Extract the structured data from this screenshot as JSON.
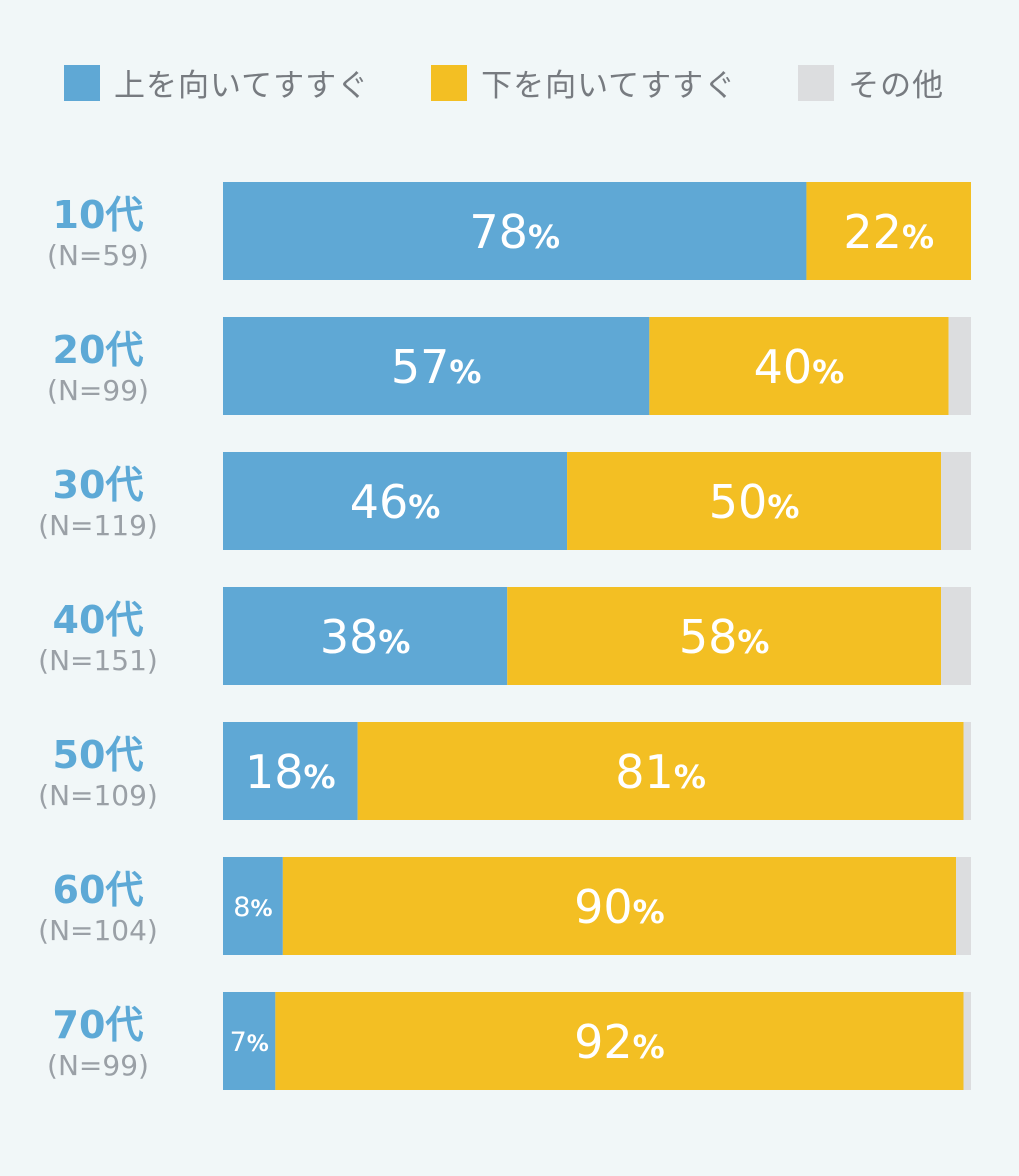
{
  "legend": [
    {
      "label": "上を向いてすすぐ",
      "color": "#5fa8d5"
    },
    {
      "label": "下を向いてすすぐ",
      "color": "#f3bf23"
    },
    {
      "label": "その他",
      "color": "#dcdddf"
    }
  ],
  "chart_data": {
    "type": "bar",
    "orientation": "horizontal",
    "stacked": true,
    "unit": "%",
    "categories": [
      "10代",
      "20代",
      "30代",
      "40代",
      "50代",
      "60代",
      "70代"
    ],
    "category_notes": [
      "(N=59)",
      "(N=99)",
      "(N=119)",
      "(N=151)",
      "(N=109)",
      "(N=104)",
      "(N=99)"
    ],
    "series": [
      {
        "name": "上を向いてすすぐ",
        "values": [
          78,
          57,
          46,
          38,
          18,
          8,
          7
        ],
        "color": "#5fa8d5"
      },
      {
        "name": "下を向いてすすぐ",
        "values": [
          22,
          40,
          50,
          58,
          81,
          90,
          92
        ],
        "color": "#f3bf23"
      },
      {
        "name": "その他",
        "values": [
          0,
          3,
          4,
          4,
          1,
          2,
          1
        ],
        "color": "#dcdddf"
      }
    ],
    "labeled_series": [
      0,
      1
    ],
    "xlim": [
      0,
      100
    ],
    "grid": false,
    "legend_position": "top"
  }
}
